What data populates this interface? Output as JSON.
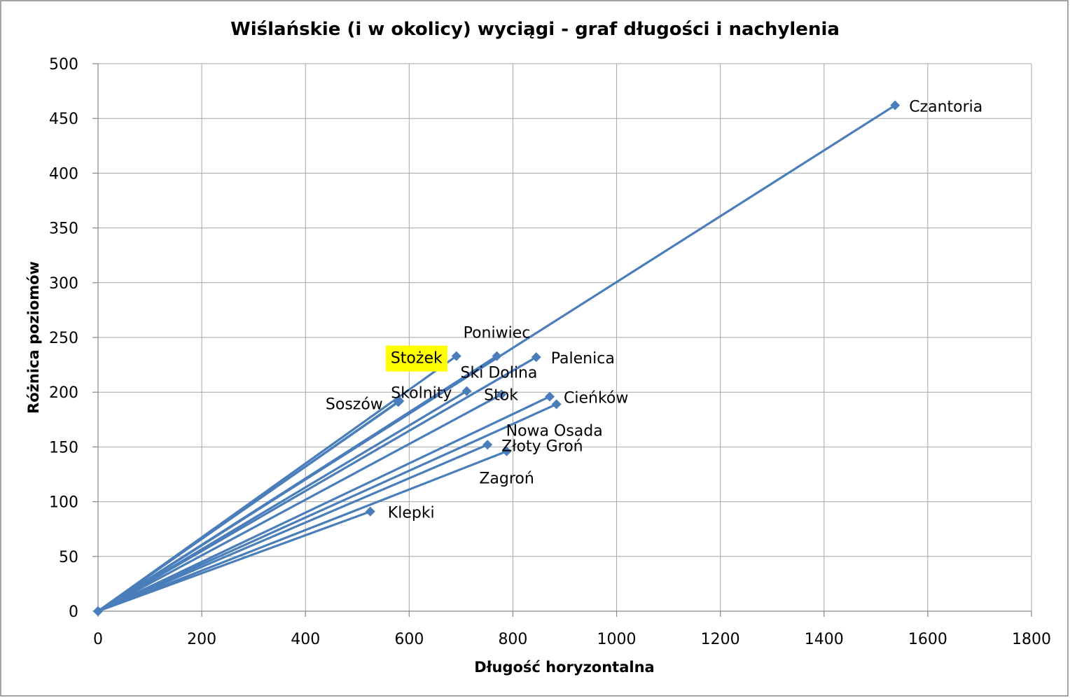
{
  "chart_data": {
    "type": "line",
    "title": "Wiślańskie (i w okolicy) wyciągi - graf długości i nachylenia",
    "xlabel": "Długość horyzontalna",
    "ylabel": "Różnica poziomów",
    "xlim": [
      0,
      1800
    ],
    "ylim": [
      0,
      500
    ],
    "x_ticks": [
      0,
      200,
      400,
      600,
      800,
      1000,
      1200,
      1400,
      1600,
      1800
    ],
    "y_ticks": [
      0,
      50,
      100,
      150,
      200,
      250,
      300,
      350,
      400,
      450,
      500
    ],
    "grid": true,
    "colors": {
      "series": "#4a7ebb",
      "highlight": "#ffff00",
      "grid": "#a6a6a6",
      "border": "#868686"
    },
    "series": [
      {
        "name": "Czantoria",
        "points": [
          [
            0,
            0
          ],
          [
            1537,
            462
          ]
        ]
      },
      {
        "name": "Stożek",
        "points": [
          [
            0,
            0
          ],
          [
            691,
            233
          ]
        ],
        "highlight": true
      },
      {
        "name": "Poniwiec",
        "points": [
          [
            0,
            0
          ],
          [
            769,
            233
          ]
        ]
      },
      {
        "name": "Palenica",
        "points": [
          [
            0,
            0
          ],
          [
            845,
            232
          ]
        ]
      },
      {
        "name": "Ski Dolina",
        "points": [
          [
            0,
            0
          ],
          [
            711,
            201
          ]
        ]
      },
      {
        "name": "Skolnity",
        "points": [
          [
            0,
            0
          ],
          [
            581,
            192
          ]
        ]
      },
      {
        "name": "Soszów",
        "points": [
          [
            0,
            0
          ],
          [
            579,
            191
          ]
        ]
      },
      {
        "name": "Stok",
        "points": [
          [
            0,
            0
          ],
          [
            778,
            198
          ]
        ]
      },
      {
        "name": "Cieńków",
        "points": [
          [
            0,
            0
          ],
          [
            871,
            196
          ]
        ]
      },
      {
        "name": "Nowa Osada",
        "points": [
          [
            0,
            0
          ],
          [
            884,
            189
          ]
        ]
      },
      {
        "name": "Złoty Groń",
        "points": [
          [
            0,
            0
          ],
          [
            751,
            152
          ]
        ]
      },
      {
        "name": "Zagroń",
        "points": [
          [
            0,
            0
          ],
          [
            788,
            146
          ]
        ]
      },
      {
        "name": "Klepki",
        "points": [
          [
            0,
            0
          ],
          [
            525,
            91
          ]
        ]
      }
    ]
  }
}
